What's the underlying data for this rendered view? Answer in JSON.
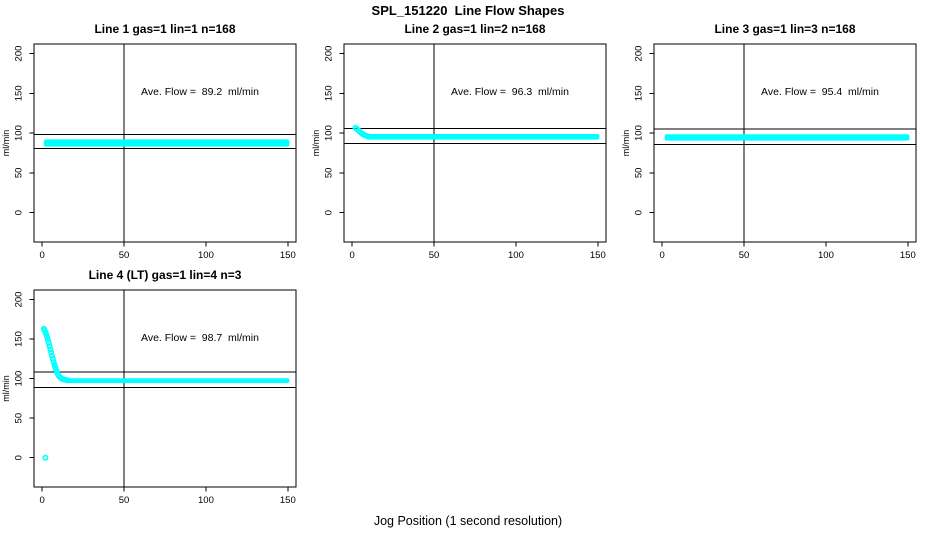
{
  "chart_data": {
    "type": "scatter",
    "title": "SPL_151220  Line Flow Shapes",
    "xlabel": "Jog Position (1 second resolution)",
    "ylabel": "ml/min",
    "x_ticks": [
      0,
      50,
      100,
      150
    ],
    "y_ticks": [
      0,
      50,
      100,
      150,
      200
    ],
    "x_domain": [
      -5,
      155
    ],
    "y_domain": [
      -37,
      212
    ],
    "vline_x": 50,
    "grid": false,
    "legend": "none",
    "marker_color": "#00FFFF",
    "axis_color": "#000000",
    "background_color": "#FFFFFF",
    "panels": [
      {
        "title": "Line 1 gas=1 lin=1 n=168",
        "n": 168,
        "ave_flow": 89.2,
        "annotation": "Ave. Flow =  89.2  ml/min",
        "ref_lines": [
          98.1,
          80.3
        ],
        "band": {
          "x_start": 1,
          "x_end": 151,
          "y_center": 87.5,
          "y_halfwidth": 4.5
        },
        "points": []
      },
      {
        "title": "Line 2 gas=1 lin=2 n=168",
        "n": 168,
        "ave_flow": 96.3,
        "annotation": "Ave. Flow =  96.3  ml/min",
        "ref_lines": [
          105.9,
          86.7
        ],
        "band": {
          "x_start": 9,
          "x_end": 151,
          "y_center": 95.3,
          "y_halfwidth": 3.5
        },
        "points": [
          [
            2,
            106.5
          ],
          [
            3,
            105
          ],
          [
            4,
            103
          ],
          [
            5,
            101
          ],
          [
            6,
            99.3
          ],
          [
            7,
            98
          ],
          [
            8,
            97
          ],
          [
            9,
            96.3
          ],
          [
            10,
            95.8
          ]
        ]
      },
      {
        "title": "Line 3 gas=1 lin=3 n=168",
        "n": 168,
        "ave_flow": 95.4,
        "annotation": "Ave. Flow =  95.4  ml/min",
        "ref_lines": [
          104.9,
          85.9
        ],
        "band": {
          "x_start": 1.5,
          "x_end": 151,
          "y_center": 94.5,
          "y_halfwidth": 4
        },
        "points": []
      },
      {
        "title": "Line 4 (LT) gas=1 lin=4 n=3",
        "n": 3,
        "ave_flow": 98.7,
        "annotation": "Ave. Flow =  98.7  ml/min",
        "ref_lines": [
          108.6,
          88.8
        ],
        "band": {
          "x_start": 15,
          "x_end": 151,
          "y_center": 97.5,
          "y_halfwidth": 3
        },
        "points": [
          [
            1,
            163
          ],
          [
            1.5,
            161
          ],
          [
            2,
            158.5
          ],
          [
            2.5,
            156
          ],
          [
            3,
            152.5
          ],
          [
            3.5,
            149
          ],
          [
            4,
            145
          ],
          [
            4.5,
            141
          ],
          [
            5,
            137
          ],
          [
            5.5,
            133
          ],
          [
            6,
            129
          ],
          [
            6.5,
            125
          ],
          [
            7,
            121
          ],
          [
            7.5,
            117.5
          ],
          [
            8,
            114
          ],
          [
            8.5,
            111
          ],
          [
            9,
            108.5
          ],
          [
            9.5,
            106
          ],
          [
            10,
            104
          ],
          [
            11,
            101.5
          ],
          [
            12,
            100
          ],
          [
            13,
            99
          ],
          [
            14,
            98.5
          ],
          [
            15,
            98
          ],
          [
            16,
            97.8
          ],
          [
            2,
            0
          ]
        ]
      }
    ]
  }
}
